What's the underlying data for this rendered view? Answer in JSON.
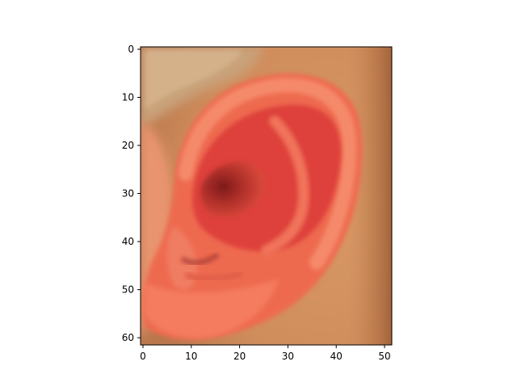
{
  "chart_data": {
    "type": "image",
    "title": "",
    "xlabel": "",
    "ylabel": "",
    "image_description": "Close-up photograph of a human ear with reddish-orange skin, pale hair at top-left, and tan skin background on the right.",
    "width": 52,
    "height": 62,
    "xlim": [
      -0.5,
      51.5
    ],
    "ylim": [
      61.5,
      -0.5
    ],
    "x_ticks": [
      0,
      10,
      20,
      30,
      40,
      50
    ],
    "y_ticks": [
      0,
      10,
      20,
      30,
      40,
      50,
      60
    ],
    "x_tick_labels": [
      "0",
      "10",
      "20",
      "30",
      "40",
      "50"
    ],
    "y_tick_labels": [
      "0",
      "10",
      "20",
      "30",
      "40",
      "50",
      "60"
    ],
    "grid": false
  }
}
